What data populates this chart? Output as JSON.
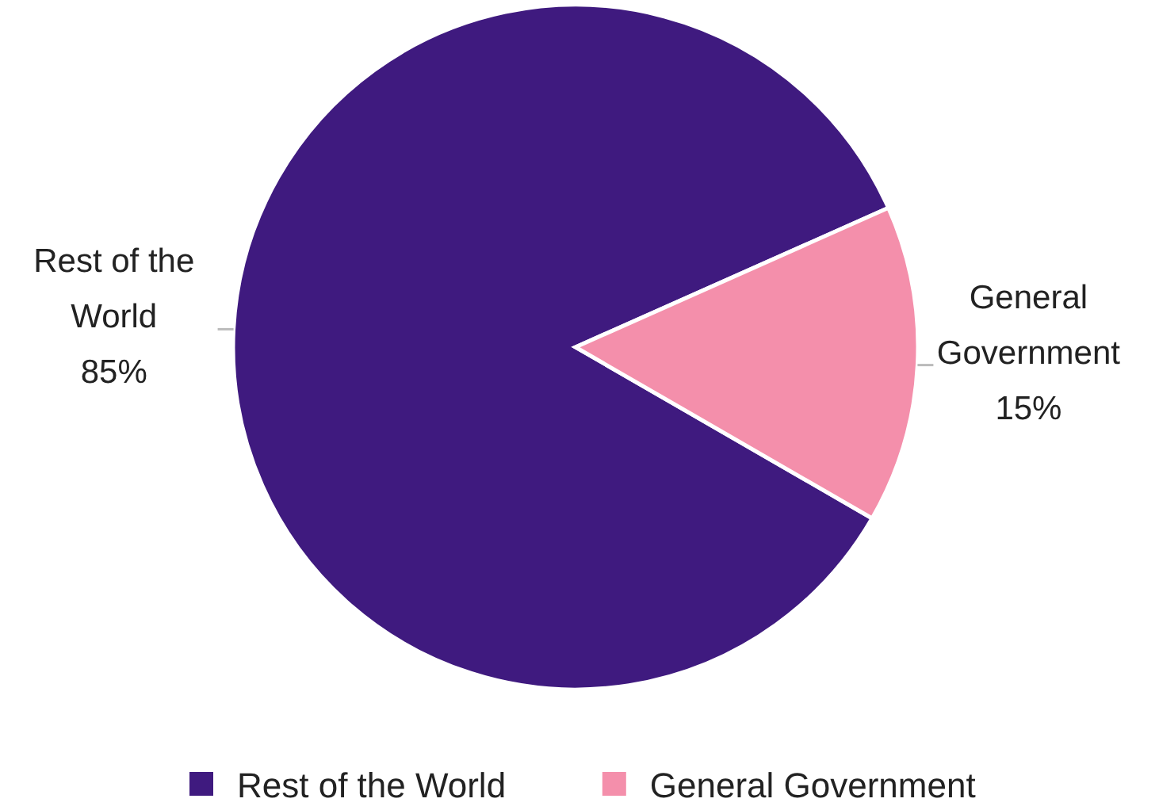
{
  "chart_data": {
    "type": "pie",
    "categories": [
      "Rest of the World",
      "General Government"
    ],
    "values": [
      85,
      15
    ],
    "colors": [
      "#3f1a7f",
      "#f48fab"
    ],
    "value_labels": [
      "85%",
      "15%"
    ],
    "legend": "bottom"
  }
}
